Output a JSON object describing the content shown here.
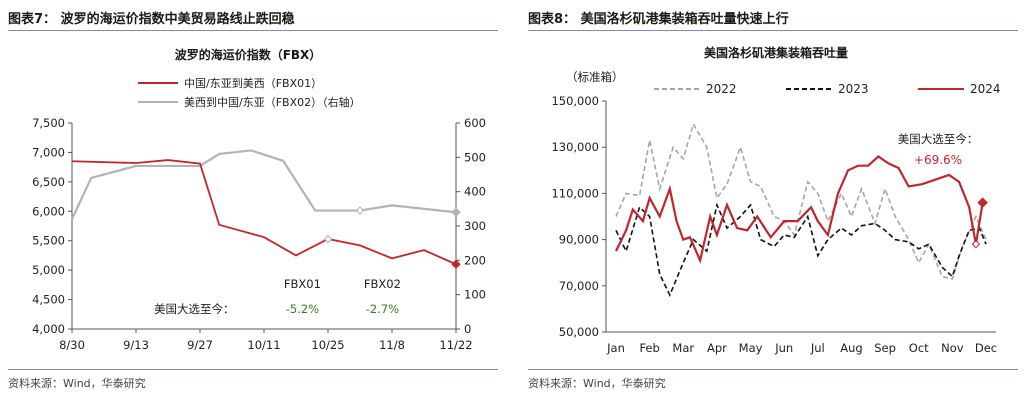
{
  "left": {
    "header": "图表7：  波罗的海运价指数中美贸易路线止跌回稳",
    "source": "资料来源：Wind，华泰研究",
    "chart_data": {
      "type": "line",
      "title": "波罗的海运价指数（FBX）",
      "categories": [
        "8/30",
        "9/13",
        "9/27",
        "10/11",
        "10/25",
        "11/8",
        "11/22"
      ],
      "ylim": [
        4000,
        7500
      ],
      "yticks": [
        "4,000",
        "4,500",
        "5,000",
        "5,500",
        "6,000",
        "6,500",
        "7,000",
        "7,500"
      ],
      "y2lim": [
        0,
        600
      ],
      "y2ticks": [
        "0",
        "100",
        "200",
        "300",
        "400",
        "500",
        "600"
      ],
      "series": [
        {
          "name": "中国/东亚到美西（FBX01）",
          "axis": "left",
          "color": "#c0272d",
          "x": [
            0,
            1,
            1.5,
            2,
            2.3,
            3,
            3.5,
            4,
            4.5,
            5,
            5.5,
            6
          ],
          "values": [
            6850,
            6820,
            6870,
            6810,
            5770,
            5560,
            5250,
            5530,
            5420,
            5200,
            5340,
            5100
          ]
        },
        {
          "name": "美西到中国/东亚（FBX02）（右轴）",
          "axis": "right",
          "color": "#b3b3b3",
          "x": [
            0,
            0.3,
            1,
            2,
            2.3,
            2.8,
            3.3,
            3.8,
            4.5,
            5,
            6
          ],
          "values": [
            320,
            440,
            475,
            475,
            510,
            520,
            490,
            345,
            345,
            360,
            340
          ]
        }
      ],
      "annotation": {
        "row_label": "美国大选至今：",
        "items": [
          {
            "label": "FBX01",
            "value": "-5.2%"
          },
          {
            "label": "FBX02",
            "value": "-2.7%"
          }
        ],
        "value_color": "#3a7d1e"
      }
    }
  },
  "right": {
    "header": "图表8：  美国洛杉矶港集装箱吞吐量快速上行",
    "source": "资料来源：Wind，华泰研究",
    "chart_data": {
      "type": "line",
      "title": "美国洛杉矶港集装箱吞吐量",
      "unit_label": "（标准箱）",
      "categories": [
        "Jan",
        "Feb",
        "Mar",
        "Apr",
        "May",
        "Jun",
        "Jul",
        "Aug",
        "Sep",
        "Oct",
        "Nov",
        "Dec"
      ],
      "ylim": [
        50000,
        150000
      ],
      "yticks": [
        "50,000",
        "70,000",
        "90,000",
        "110,000",
        "130,000",
        "150,000"
      ],
      "series": [
        {
          "name": "2022",
          "color": "#a6a6a6",
          "style": "dash",
          "x": [
            0,
            0.3,
            0.7,
            1,
            1.3,
            1.7,
            2,
            2.3,
            2.7,
            3,
            3.3,
            3.7,
            4,
            4.3,
            4.7,
            5,
            5.3,
            5.7,
            6,
            6.3,
            6.7,
            7,
            7.3,
            7.7,
            8,
            8.3,
            8.7,
            9,
            9.3,
            9.7,
            10,
            10.3,
            10.7,
            11
          ],
          "values": [
            100000,
            110000,
            109000,
            133000,
            112000,
            130000,
            125000,
            140000,
            130000,
            108000,
            114000,
            130000,
            115000,
            113000,
            100000,
            98000,
            92000,
            115000,
            110000,
            98000,
            110000,
            100000,
            112000,
            97000,
            112000,
            100000,
            90000,
            80000,
            88000,
            74000,
            73000,
            87000,
            100000,
            90000
          ]
        },
        {
          "name": "2023",
          "color": "#111111",
          "style": "dash",
          "x": [
            0,
            0.3,
            0.7,
            1,
            1.3,
            1.6,
            2,
            2.3,
            2.7,
            3,
            3.3,
            3.7,
            4,
            4.3,
            4.7,
            5,
            5.3,
            5.7,
            6,
            6.3,
            6.7,
            7,
            7.3,
            7.7,
            8,
            8.3,
            8.7,
            9,
            9.3,
            9.7,
            10,
            10.2,
            10.5,
            10.8,
            11
          ],
          "values": [
            94000,
            85000,
            104000,
            100000,
            75000,
            66000,
            80000,
            90000,
            85000,
            105000,
            95000,
            100000,
            105000,
            90000,
            87000,
            92000,
            91000,
            100000,
            83000,
            90000,
            95000,
            92000,
            96000,
            97000,
            94000,
            90000,
            89000,
            86000,
            88000,
            78000,
            74000,
            83000,
            94000,
            95000,
            88000
          ]
        },
        {
          "name": "2024",
          "color": "#c0272d",
          "style": "solid",
          "x": [
            0,
            0.3,
            0.5,
            0.8,
            1,
            1.3,
            1.6,
            1.8,
            2,
            2.2,
            2.5,
            2.8,
            3,
            3.3,
            3.6,
            3.9,
            4.2,
            4.6,
            5,
            5.4,
            5.8,
            6,
            6.3,
            6.6,
            6.9,
            7.2,
            7.5,
            7.8,
            8.1,
            8.4,
            8.7,
            9.1,
            9.5,
            9.9,
            10.2,
            10.5,
            10.7,
            10.9
          ],
          "values": [
            85000,
            94000,
            103000,
            98000,
            108000,
            100000,
            112000,
            98000,
            90000,
            91000,
            81000,
            100000,
            92000,
            105000,
            95000,
            94000,
            100000,
            91000,
            98000,
            98000,
            104000,
            98000,
            92000,
            110000,
            120000,
            122000,
            122000,
            126000,
            123000,
            121000,
            113000,
            114000,
            116000,
            118000,
            115000,
            104000,
            88000,
            106000
          ]
        }
      ],
      "annotation": {
        "label": "美国大选至今：",
        "value": "+69.6%",
        "value_color": "#c0272d"
      }
    }
  }
}
